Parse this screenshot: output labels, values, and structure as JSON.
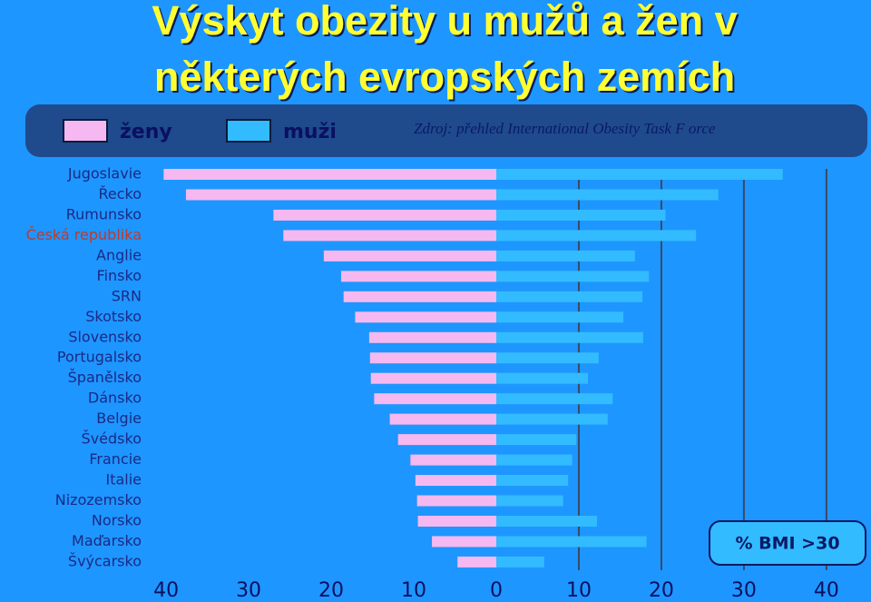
{
  "chart_data": {
    "type": "butterfly-bar",
    "title": [
      "Výskyt obezity u mužů a žen v",
      "některých evropských zemích"
    ],
    "source": "Zdroj:  přehled International Obesity Task F orce",
    "annotation": "% BMI >30",
    "categories": [
      "Jugoslavie",
      "Řecko",
      "Rumunsko",
      "Česká republika",
      "Anglie",
      "Finsko",
      "SRN",
      "Skotsko",
      "Slovensko",
      "Portugalsko",
      "Španělsko",
      "Dánsko",
      "Belgie",
      "Švédsko",
      "Francie",
      "Italie",
      "Nizozemsko",
      "Norsko",
      "Maďarsko",
      "Švýcarsko"
    ],
    "label_colors": [
      "#1a2a86",
      "#1a2a86",
      "#1a2a86",
      "#c0392b",
      "#1a2a86",
      "#1a2a86",
      "#1a2a86",
      "#1a2a86",
      "#1a2a86",
      "#1a2a86",
      "#1a2a86",
      "#1a2a86",
      "#1a2a86",
      "#1a2a86",
      "#1a2a86",
      "#1a2a86",
      "#1a2a86",
      "#1a2a86",
      "#1a2a86",
      "#1a2a86"
    ],
    "series": [
      {
        "name": "ženy",
        "color": "#f5b8f0",
        "side": "left",
        "values": [
          40.3,
          37.6,
          27.0,
          25.8,
          20.9,
          18.8,
          18.5,
          17.1,
          15.4,
          15.3,
          15.2,
          14.8,
          12.9,
          11.9,
          10.4,
          9.8,
          9.6,
          9.5,
          7.8,
          4.7
        ]
      },
      {
        "name": "muži",
        "color": "#33bbff",
        "side": "right",
        "values": [
          34.7,
          26.9,
          20.5,
          24.2,
          16.8,
          18.5,
          17.7,
          15.4,
          17.8,
          12.4,
          11.1,
          14.1,
          13.5,
          9.7,
          9.2,
          8.7,
          8.1,
          12.2,
          18.2,
          5.8
        ]
      }
    ],
    "xlim": [
      -41,
      41
    ],
    "xticks": [
      {
        "value": -40,
        "label": "40"
      },
      {
        "value": -30,
        "label": "30"
      },
      {
        "value": -20,
        "label": "20"
      },
      {
        "value": -10,
        "label": "10"
      },
      0,
      10,
      20,
      30,
      40
    ],
    "grid": true
  }
}
